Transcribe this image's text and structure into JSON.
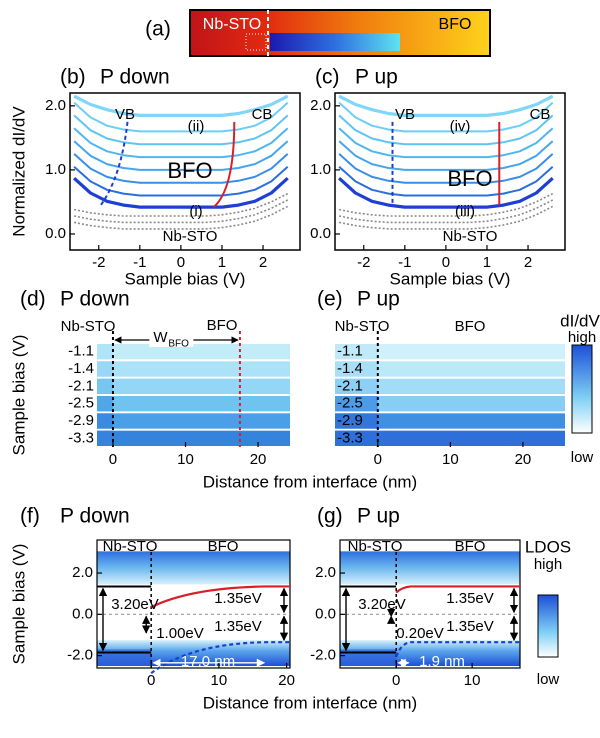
{
  "panel_a": {
    "label": "(a)",
    "left": "Nb-STO",
    "right": "BFO"
  },
  "chart_data": [
    {
      "type": "line",
      "panel": "(b)",
      "title": "P down",
      "x_label": "Sample bias (V)",
      "y_label": "Normalized dI/dV",
      "xlim": [
        -2.7,
        2.9
      ],
      "xticks": [
        -2,
        -1,
        0,
        1,
        2
      ],
      "ylim": [
        -0.25,
        2.2
      ],
      "yticks": [
        {
          "value": 0,
          "label": "0.0"
        },
        {
          "value": 1,
          "label": "1.0"
        },
        {
          "value": 2,
          "label": "2.0"
        }
      ],
      "x": [
        -2.6,
        -2.2,
        -1.8,
        -1.4,
        -1.0,
        -0.6,
        -0.2,
        0.2,
        0.6,
        1.0,
        1.4,
        1.8,
        2.2,
        2.6
      ],
      "series": [
        {
          "color": "#8a8a8a",
          "dashed": true,
          "values": [
            0.18,
            0.13,
            0.1,
            0.08,
            0.08,
            0.08,
            0.08,
            0.08,
            0.08,
            0.1,
            0.14,
            0.2,
            0.3,
            0.43
          ]
        },
        {
          "color": "#8a8a8a",
          "dashed": true,
          "values": [
            0.28,
            0.23,
            0.2,
            0.18,
            0.18,
            0.18,
            0.18,
            0.18,
            0.18,
            0.2,
            0.24,
            0.3,
            0.4,
            0.53
          ]
        },
        {
          "color": "#8a8a8a",
          "dashed": true,
          "values": [
            0.38,
            0.33,
            0.3,
            0.28,
            0.28,
            0.28,
            0.28,
            0.28,
            0.28,
            0.3,
            0.34,
            0.4,
            0.5,
            0.63
          ]
        },
        {
          "color": "#1d3fd6",
          "values": [
            0.87,
            0.64,
            0.51,
            0.45,
            0.42,
            0.42,
            0.42,
            0.42,
            0.42,
            0.42,
            0.45,
            0.51,
            0.64,
            0.87
          ]
        },
        {
          "color": "#2a6fe0",
          "values": [
            1.05,
            0.82,
            0.69,
            0.63,
            0.6,
            0.6,
            0.6,
            0.6,
            0.6,
            0.6,
            0.63,
            0.69,
            0.82,
            1.05
          ]
        },
        {
          "color": "#3a8ee8",
          "values": [
            1.25,
            1.02,
            0.89,
            0.83,
            0.8,
            0.8,
            0.8,
            0.8,
            0.8,
            0.8,
            0.83,
            0.89,
            1.02,
            1.25
          ]
        },
        {
          "color": "#45a6ee",
          "values": [
            1.45,
            1.22,
            1.09,
            1.03,
            1,
            1,
            1,
            1,
            1,
            1,
            1.03,
            1.09,
            1.22,
            1.45
          ]
        },
        {
          "color": "#4fb6f0",
          "values": [
            1.65,
            1.42,
            1.29,
            1.23,
            1.2,
            1.2,
            1.2,
            1.2,
            1.2,
            1.2,
            1.23,
            1.29,
            1.42,
            1.65
          ]
        },
        {
          "color": "#5ec4f3",
          "values": [
            1.85,
            1.62,
            1.49,
            1.43,
            1.4,
            1.4,
            1.4,
            1.4,
            1.4,
            1.4,
            1.43,
            1.49,
            1.62,
            1.85
          ]
        },
        {
          "color": "#6ccdf5",
          "values": [
            2.05,
            1.82,
            1.69,
            1.63,
            1.6,
            1.6,
            1.6,
            1.6,
            1.6,
            1.6,
            1.63,
            1.69,
            1.82,
            2.05
          ]
        },
        {
          "color": "#7fd6f7",
          "values": [
            2.15,
            2.02,
            1.94,
            1.88,
            1.85,
            1.85,
            1.85,
            1.85,
            1.85,
            1.85,
            1.88,
            1.94,
            2.02,
            2.15
          ]
        }
      ],
      "annotations": [
        "VB",
        "CB",
        "(ii)",
        "BFO",
        "(i)",
        "Nb-STO"
      ]
    },
    {
      "type": "line",
      "panel": "(c)",
      "title": "P up",
      "x_label": "Sample bias (V)",
      "xlim": [
        -2.7,
        2.9
      ],
      "xticks": [
        -2,
        -1,
        0,
        1,
        2
      ],
      "ylim": [
        -0.25,
        2.2
      ],
      "x": [
        -2.6,
        -2.2,
        -1.8,
        -1.4,
        -1.0,
        -0.6,
        -0.2,
        0.2,
        0.6,
        1.0,
        1.4,
        1.8,
        2.2,
        2.6
      ],
      "series": [
        {
          "color": "#8a8a8a",
          "dashed": true,
          "values": [
            0.18,
            0.13,
            0.1,
            0.08,
            0.08,
            0.08,
            0.08,
            0.08,
            0.08,
            0.1,
            0.14,
            0.2,
            0.3,
            0.43
          ]
        },
        {
          "color": "#8a8a8a",
          "dashed": true,
          "values": [
            0.28,
            0.23,
            0.2,
            0.18,
            0.18,
            0.18,
            0.18,
            0.18,
            0.18,
            0.2,
            0.24,
            0.3,
            0.4,
            0.53
          ]
        },
        {
          "color": "#8a8a8a",
          "dashed": true,
          "values": [
            0.38,
            0.33,
            0.3,
            0.28,
            0.28,
            0.28,
            0.28,
            0.28,
            0.28,
            0.3,
            0.34,
            0.4,
            0.5,
            0.63
          ]
        },
        {
          "color": "#1d3fd6",
          "values": [
            0.87,
            0.64,
            0.51,
            0.45,
            0.42,
            0.42,
            0.42,
            0.42,
            0.42,
            0.42,
            0.45,
            0.51,
            0.64,
            0.87
          ]
        },
        {
          "color": "#2a6fe0",
          "values": [
            1.05,
            0.82,
            0.69,
            0.63,
            0.6,
            0.6,
            0.6,
            0.6,
            0.6,
            0.6,
            0.63,
            0.69,
            0.82,
            1.05
          ]
        },
        {
          "color": "#3a8ee8",
          "values": [
            1.25,
            1.02,
            0.89,
            0.83,
            0.8,
            0.8,
            0.8,
            0.8,
            0.8,
            0.8,
            0.83,
            0.89,
            1.02,
            1.25
          ]
        },
        {
          "color": "#45a6ee",
          "values": [
            1.45,
            1.22,
            1.09,
            1.03,
            1,
            1,
            1,
            1,
            1,
            1,
            1.03,
            1.09,
            1.22,
            1.45
          ]
        },
        {
          "color": "#4fb6f0",
          "values": [
            1.65,
            1.42,
            1.29,
            1.23,
            1.2,
            1.2,
            1.2,
            1.2,
            1.2,
            1.2,
            1.23,
            1.29,
            1.42,
            1.65
          ]
        },
        {
          "color": "#5ec4f3",
          "values": [
            1.85,
            1.62,
            1.49,
            1.43,
            1.4,
            1.4,
            1.4,
            1.4,
            1.4,
            1.4,
            1.43,
            1.49,
            1.62,
            1.85
          ]
        },
        {
          "color": "#6ccdf5",
          "values": [
            2.05,
            1.82,
            1.69,
            1.63,
            1.6,
            1.6,
            1.6,
            1.6,
            1.6,
            1.6,
            1.63,
            1.69,
            1.82,
            2.05
          ]
        },
        {
          "color": "#7fd6f7",
          "values": [
            2.15,
            2.02,
            1.94,
            1.88,
            1.85,
            1.85,
            1.85,
            1.85,
            1.85,
            1.85,
            1.88,
            1.94,
            2.02,
            2.15
          ]
        }
      ],
      "annotations": [
        "VB",
        "CB",
        "(iv)",
        "BFO",
        "(iii)",
        "Nb-STO"
      ]
    },
    {
      "type": "heatmap",
      "panel": "(d)",
      "title": "P down",
      "x_label": "Distance from interface (nm)",
      "y_label": "Sample bias (V)",
      "xlim": [
        -2.2,
        24.4
      ],
      "xticks": [
        0,
        10,
        20
      ],
      "rows": [
        -1.1,
        -1.4,
        -2.1,
        -2.5,
        -2.9,
        -3.3
      ],
      "annotations": [
        "Nb-STO",
        "BFO"
      ],
      "w_label": "W",
      "w_subscript": "BFO"
    },
    {
      "type": "heatmap",
      "panel": "(e)",
      "title": "P up",
      "xlim": [
        -5.9,
        25.8
      ],
      "xticks": [
        0,
        10,
        20
      ],
      "rows": [
        -1.1,
        -1.4,
        -2.1,
        -2.5,
        -2.9,
        -3.3
      ],
      "annotations": [
        "Nb-STO",
        "BFO"
      ],
      "colorbar": {
        "title": "dI/dV",
        "high": "high",
        "low": "low"
      }
    },
    {
      "type": "bandmap",
      "panel": "(f)",
      "title": "P down",
      "x_label": "Distance from interface (nm)",
      "y_label": "Sample bias (V)",
      "xlim": [
        -8,
        20.5
      ],
      "xticks": [
        0,
        10,
        20
      ],
      "ylim": [
        -2.6,
        3.6
      ],
      "yticks": [
        {
          "value": 2,
          "label": "2.0"
        },
        {
          "value": 0,
          "label": "0.0"
        },
        {
          "value": -2,
          "label": "-2.0"
        }
      ],
      "annotations": [
        "Nb-STO",
        "BFO",
        "3.20eV",
        "1.35eV",
        "1.35eV",
        "1.00eV",
        "17.0 nm"
      ]
    },
    {
      "type": "bandmap",
      "panel": "(g)",
      "title": "P up",
      "xlim": [
        -7.4,
        16.3
      ],
      "xticks": [
        0,
        10
      ],
      "ylim": [
        -2.6,
        3.6
      ],
      "yticks": [
        {
          "value": 2,
          "label": "2.0"
        },
        {
          "value": 0,
          "label": "0.0"
        },
        {
          "value": -2,
          "label": "-2.0"
        }
      ],
      "annotations": [
        "Nb-STO",
        "BFO",
        "3.20eV",
        "1.35eV",
        "1.35eV",
        "0.20eV",
        "1.9 nm"
      ],
      "colorbar": {
        "title": "LDOS",
        "high": "high",
        "low": "low"
      }
    }
  ]
}
